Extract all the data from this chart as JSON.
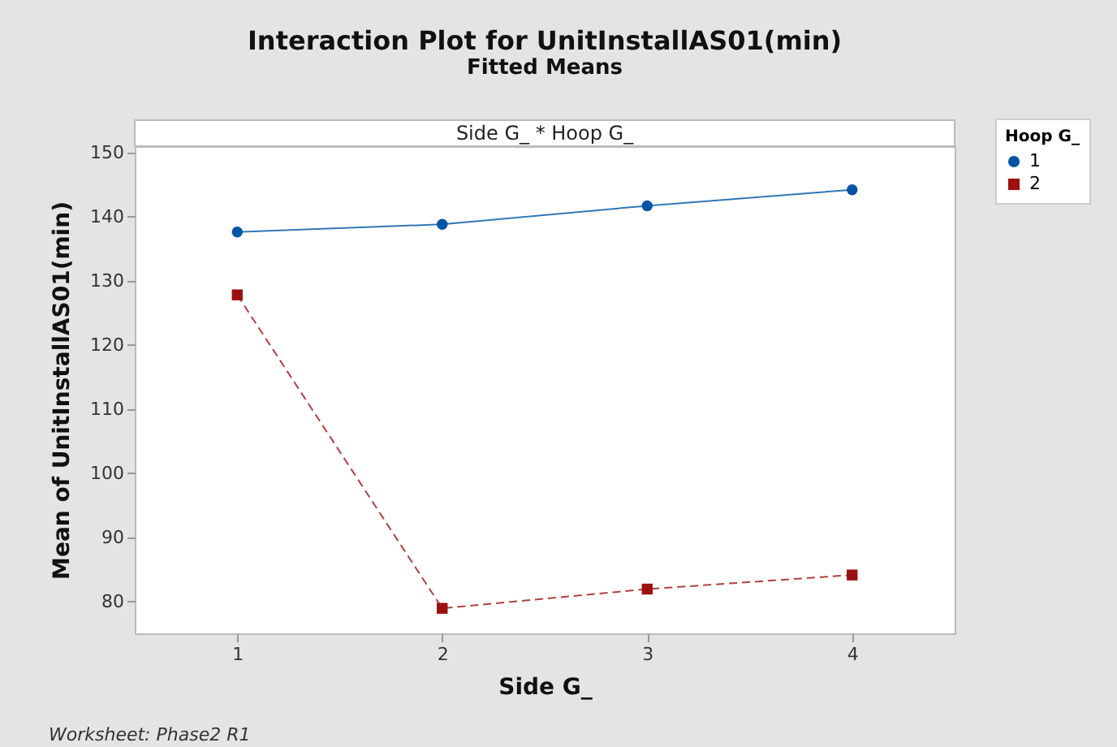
{
  "chart_data": {
    "type": "line",
    "title": "Interaction Plot for UnitInstallAS01(min)",
    "subtitle": "Fitted Means",
    "xlabel": "Side G_",
    "ylabel": "Mean of UnitInstallAS01(min)",
    "legend_title": "Hoop G_",
    "x": [
      1,
      2,
      3,
      4
    ],
    "xlim": [
      0.5,
      4.5
    ],
    "xticks": [
      1,
      2,
      3,
      4
    ],
    "ylim": [
      75,
      151
    ],
    "yticks": [
      80,
      90,
      100,
      110,
      120,
      130,
      140,
      150
    ],
    "series": [
      {
        "name": "1",
        "color": "#0054a6",
        "marker": "circle",
        "line_style": "solid",
        "values": [
          137.6,
          138.8,
          141.7,
          144.2
        ]
      },
      {
        "name": "2",
        "color": "#9c1010",
        "marker": "square",
        "line_style": "dashed",
        "values": [
          127.8,
          78.9,
          81.9,
          84.1
        ]
      }
    ],
    "annotations": [
      "Side G_ * Hoop G_",
      "Worksheet: Phase2 R1"
    ],
    "grid": false,
    "legend": "top right"
  }
}
